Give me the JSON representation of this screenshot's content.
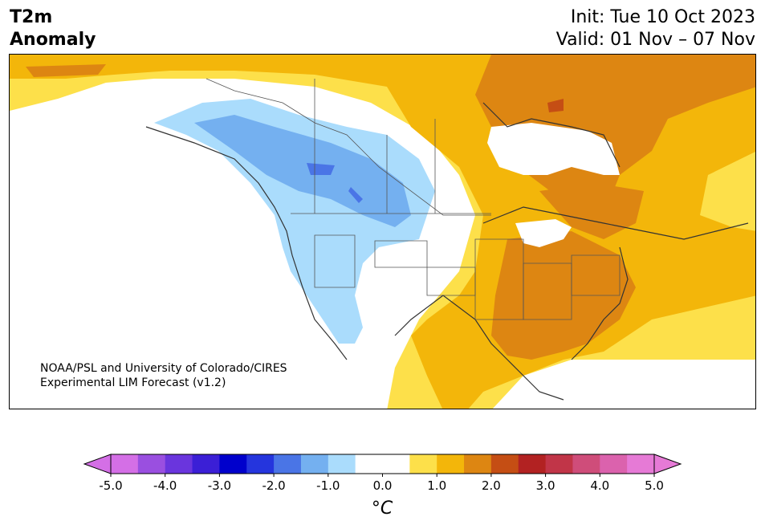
{
  "header": {
    "variable": "T2m",
    "variable_sub": "Anomaly",
    "init": "Init: Tue 10 Oct 2023",
    "valid": "Valid: 01 Nov – 07 Nov"
  },
  "map": {
    "credit_line1": "NOAA/PSL and University of Colorado/CIRES",
    "credit_line2": "Experimental LIM Forecast (v1.2)"
  },
  "colorbar": {
    "unit": "°C",
    "tick_labels": [
      "-5.0",
      "-4.0",
      "-3.0",
      "-2.0",
      "-1.0",
      "0.0",
      "1.0",
      "2.0",
      "3.0",
      "4.0",
      "5.0"
    ],
    "colors": [
      "#d46fe6",
      "#9a4fe0",
      "#6a35dd",
      "#3b1fd6",
      "#0000cc",
      "#2535dd",
      "#4a75e6",
      "#74b0f0",
      "#aadcfc",
      "#ffffff",
      "#ffffff",
      "#fde04a",
      "#f3b60a",
      "#dd8612",
      "#c54e14",
      "#b22222",
      "#c13548",
      "#cf4d7a",
      "#db62ad",
      "#e67ad6"
    ],
    "extend_low_color": "#d46fe6",
    "extend_high_color": "#e67ad6"
  }
}
